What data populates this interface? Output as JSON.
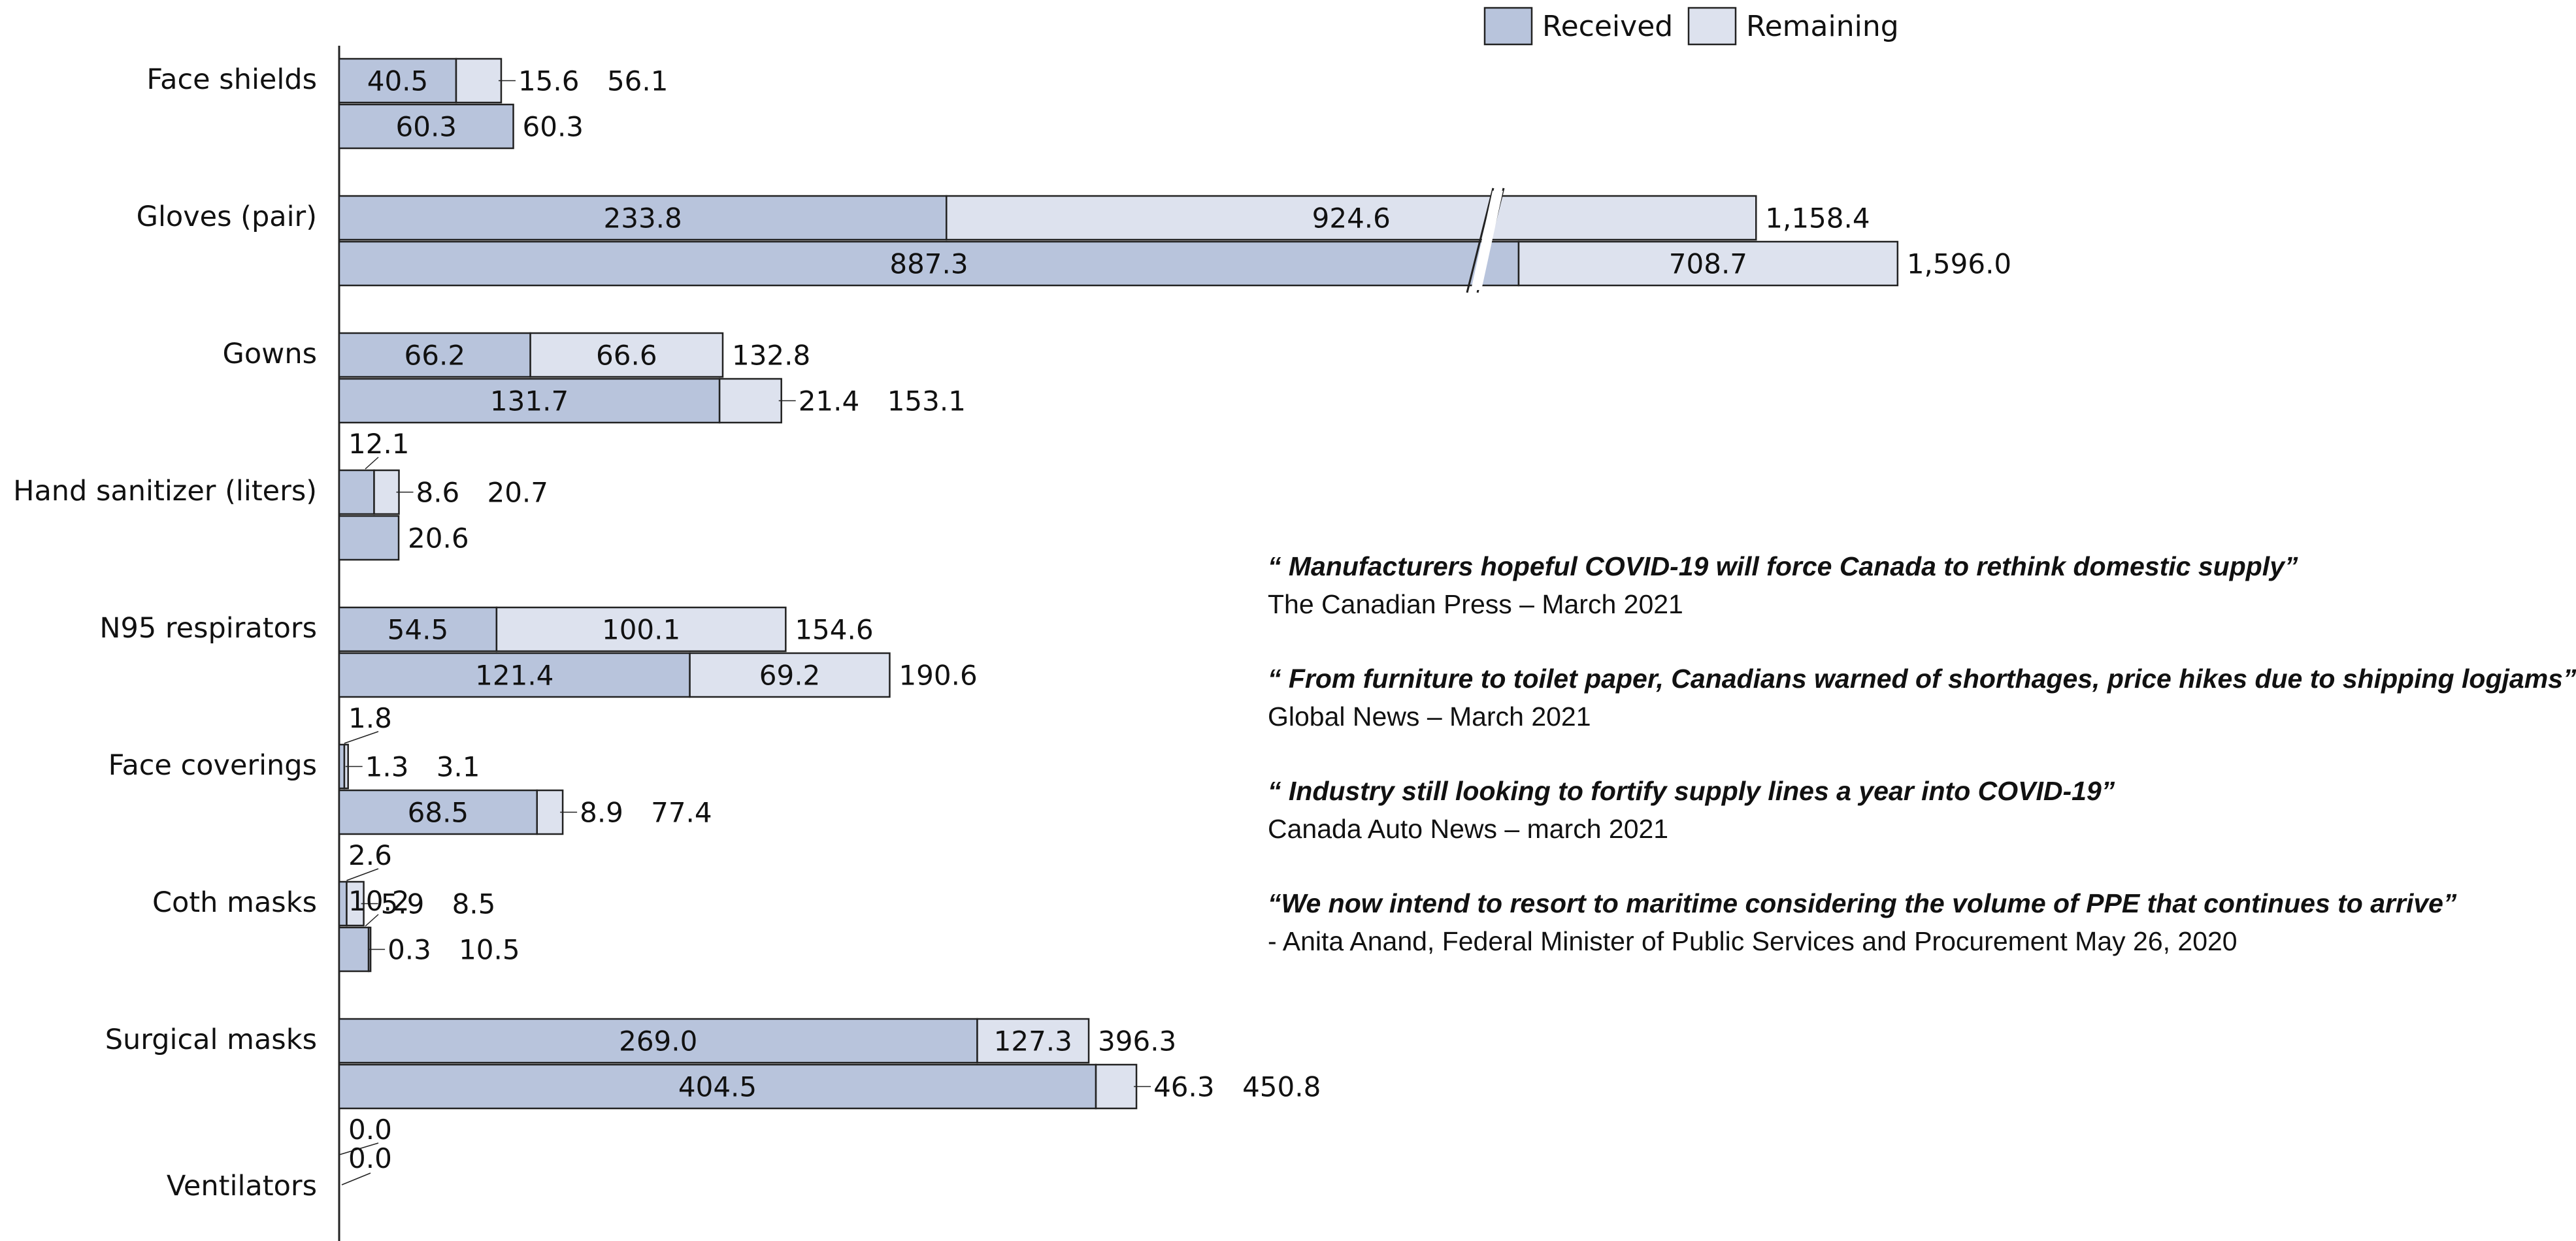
{
  "chart_data": {
    "type": "bar",
    "orientation": "horizontal",
    "stacked": true,
    "categories": [
      "Face shields",
      "Gloves (pair)",
      "Gowns",
      "Hand sanitizer (liters)",
      "N95 respirators",
      "Face coverings",
      "Coth masks",
      "Surgical masks",
      "Ventilators"
    ],
    "series": [
      {
        "name": "Received",
        "color": "#b8c4dc"
      },
      {
        "name": "Remaining",
        "color": "#dde2ee"
      }
    ],
    "groups": [
      {
        "category": "Face shields",
        "bars": [
          {
            "received": 40.5,
            "remaining": 15.6,
            "total": 56.1,
            "labels": [
              "40.5",
              "15.6",
              "56.1"
            ]
          },
          {
            "received": 60.3,
            "remaining": 0,
            "total": 60.3,
            "labels": [
              "60.3",
              "",
              "60.3"
            ]
          }
        ]
      },
      {
        "category": "Gloves (pair)",
        "bars": [
          {
            "received": 233.8,
            "remaining": 924.6,
            "total": 1158.4,
            "labels": [
              "233.8",
              "924.6",
              "1,158.4"
            ]
          },
          {
            "received": 887.3,
            "remaining": 708.7,
            "total": 1596.0,
            "labels": [
              "887.3",
              "708.7",
              "1,596.0"
            ]
          }
        ]
      },
      {
        "category": "Gowns",
        "bars": [
          {
            "received": 66.2,
            "remaining": 66.6,
            "total": 132.8,
            "labels": [
              "66.2",
              "66.6",
              "132.8"
            ]
          },
          {
            "received": 131.7,
            "remaining": 21.4,
            "total": 153.1,
            "labels": [
              "131.7",
              "21.4",
              "153.1"
            ]
          }
        ]
      },
      {
        "category": "Hand sanitizer (liters)",
        "bars": [
          {
            "received": 12.1,
            "remaining": 8.6,
            "total": 20.7,
            "labels": [
              "12.1",
              "8.6",
              "20.7"
            ]
          },
          {
            "received": 20.6,
            "remaining": 0,
            "total": 20.6,
            "labels": [
              "20.6",
              "",
              "20.6"
            ]
          }
        ]
      },
      {
        "category": "N95 respirators",
        "bars": [
          {
            "received": 54.5,
            "remaining": 100.1,
            "total": 154.6,
            "labels": [
              "54.5",
              "100.1",
              "154.6"
            ]
          },
          {
            "received": 121.4,
            "remaining": 69.2,
            "total": 190.6,
            "labels": [
              "121.4",
              "69.2",
              "190.6"
            ]
          }
        ]
      },
      {
        "category": "Face coverings",
        "bars": [
          {
            "received": 1.8,
            "remaining": 1.3,
            "total": 3.1,
            "labels": [
              "1.8",
              "1.3",
              "3.1"
            ]
          },
          {
            "received": 68.5,
            "remaining": 8.9,
            "total": 77.4,
            "labels": [
              "68.5",
              "8.9",
              "77.4"
            ]
          }
        ]
      },
      {
        "category": "Coth masks",
        "bars": [
          {
            "received": 2.6,
            "remaining": 5.9,
            "total": 8.5,
            "labels": [
              "2.6",
              "5.9",
              "8.5"
            ]
          },
          {
            "received": 10.2,
            "remaining": 0.3,
            "total": 10.5,
            "labels": [
              "10.2",
              "0.3",
              "10.5"
            ]
          }
        ]
      },
      {
        "category": "Surgical masks",
        "bars": [
          {
            "received": 269.0,
            "remaining": 127.3,
            "total": 396.3,
            "labels": [
              "269.0",
              "127.3",
              "396.3"
            ]
          },
          {
            "received": 404.5,
            "remaining": 46.3,
            "total": 450.8,
            "labels": [
              "404.5",
              "46.3",
              "450.8"
            ]
          }
        ]
      },
      {
        "category": "Ventilators",
        "bars": [
          {
            "received": 0.0,
            "remaining": 0,
            "total": 0.0,
            "labels": [
              "0.0",
              "",
              ""
            ]
          }
        ]
      }
    ],
    "axis_break": true,
    "legend_position": "top-right"
  },
  "quotes": [
    {
      "text": "“ Manufacturers hopeful COVID-19 will force Canada to rethink domestic supply”",
      "source": "The Canadian Press – March 2021"
    },
    {
      "text": "“ From furniture to toilet paper, Canadians warned of shorthages, price hikes due to shipping logjams”",
      "source": "Global News – March 2021"
    },
    {
      "text": "“ Industry still looking to fortify supply lines a year into COVID-19”",
      "source": "Canada Auto News – march 2021"
    },
    {
      "text": "“We now intend to resort to maritime considering the volume of PPE that continues to arrive”",
      "source": "- Anita Anand, Federal Minister of Public Services and Procurement May 26, 2020"
    }
  ]
}
